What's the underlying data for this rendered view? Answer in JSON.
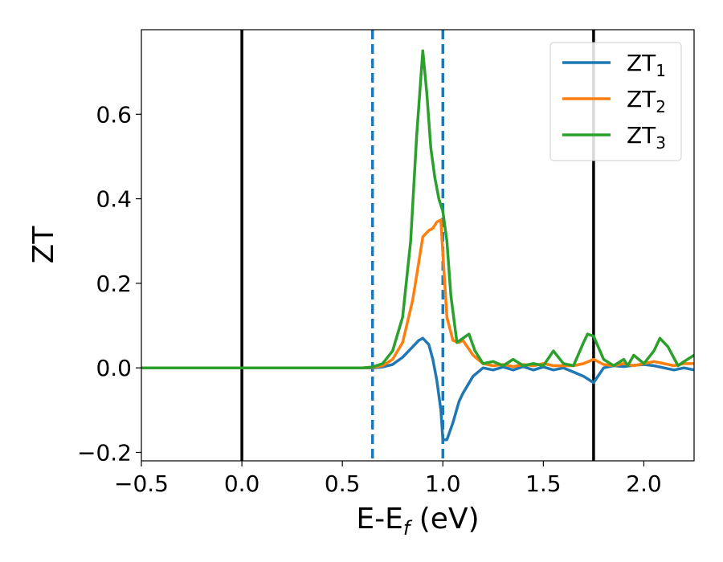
{
  "chart_data": {
    "type": "line",
    "xlabel": "E-E",
    "xlabel_sub": "f",
    "xlabel_suffix": " (eV)",
    "ylabel": "ZT",
    "xlim": [
      -0.5,
      2.25
    ],
    "ylim": [
      -0.22,
      0.8
    ],
    "xticks": [
      -0.5,
      0.0,
      0.5,
      1.0,
      1.5,
      2.0
    ],
    "xtick_labels": [
      "−0.5",
      "0.0",
      "0.5",
      "1.0",
      "1.5",
      "2.0"
    ],
    "yticks": [
      -0.2,
      0.0,
      0.2,
      0.4,
      0.6
    ],
    "ytick_labels": [
      "−0.2",
      "0.0",
      "0.2",
      "0.4",
      "0.6"
    ],
    "grid": false,
    "legend_placement": "top-right",
    "vlines": [
      {
        "x": 0.0,
        "style": "solid",
        "color": "#000000"
      },
      {
        "x": 1.75,
        "style": "solid",
        "color": "#000000"
      },
      {
        "x": 0.65,
        "style": "dashed",
        "color": "#1f77b4"
      },
      {
        "x": 1.0,
        "style": "dashed",
        "color": "#1f77b4"
      }
    ],
    "series": [
      {
        "name": "ZT",
        "name_sub": "1",
        "color": "#1f77b4",
        "x": [
          -0.5,
          0.6,
          0.65,
          0.7,
          0.75,
          0.8,
          0.85,
          0.88,
          0.9,
          0.93,
          0.95,
          0.97,
          0.99,
          1.0,
          1.02,
          1.05,
          1.08,
          1.1,
          1.15,
          1.2,
          1.25,
          1.3,
          1.35,
          1.4,
          1.45,
          1.5,
          1.55,
          1.6,
          1.65,
          1.7,
          1.75,
          1.8,
          1.85,
          1.9,
          1.95,
          2.0,
          2.05,
          2.1,
          2.15,
          2.2,
          2.25
        ],
        "y": [
          0.0,
          0.0,
          0.0,
          0.002,
          0.008,
          0.025,
          0.05,
          0.065,
          0.07,
          0.055,
          0.02,
          -0.03,
          -0.1,
          -0.17,
          -0.17,
          -0.13,
          -0.08,
          -0.06,
          -0.02,
          0.0,
          -0.005,
          0.002,
          -0.005,
          0.003,
          -0.005,
          0.002,
          -0.005,
          0.0,
          -0.01,
          -0.02,
          -0.035,
          0.0,
          0.005,
          0.003,
          0.006,
          0.008,
          0.005,
          0.0,
          -0.005,
          0.0,
          -0.005
        ]
      },
      {
        "name": "ZT",
        "name_sub": "2",
        "color": "#ff7f0e",
        "x": [
          -0.5,
          0.6,
          0.65,
          0.7,
          0.75,
          0.8,
          0.85,
          0.88,
          0.9,
          0.93,
          0.95,
          0.97,
          0.99,
          1.0,
          1.02,
          1.05,
          1.08,
          1.1,
          1.15,
          1.2,
          1.25,
          1.3,
          1.35,
          1.4,
          1.45,
          1.5,
          1.55,
          1.6,
          1.65,
          1.7,
          1.75,
          1.8,
          1.85,
          1.9,
          1.95,
          2.0,
          2.05,
          2.1,
          2.15,
          2.2,
          2.25
        ],
        "y": [
          0.0,
          0.0,
          0.001,
          0.005,
          0.02,
          0.06,
          0.16,
          0.25,
          0.31,
          0.325,
          0.33,
          0.345,
          0.35,
          0.27,
          0.12,
          0.065,
          0.06,
          0.065,
          0.03,
          0.01,
          0.005,
          0.008,
          0.003,
          0.008,
          0.005,
          0.01,
          0.005,
          0.005,
          0.005,
          0.01,
          0.02,
          0.008,
          0.005,
          0.01,
          0.005,
          0.01,
          0.015,
          0.01,
          0.005,
          0.01,
          0.01
        ]
      },
      {
        "name": "ZT",
        "name_sub": "3",
        "color": "#2ca02c",
        "x": [
          -0.5,
          0.6,
          0.65,
          0.7,
          0.75,
          0.8,
          0.84,
          0.87,
          0.9,
          0.92,
          0.94,
          0.96,
          0.98,
          1.0,
          1.02,
          1.04,
          1.07,
          1.1,
          1.13,
          1.16,
          1.2,
          1.25,
          1.3,
          1.35,
          1.4,
          1.45,
          1.5,
          1.55,
          1.6,
          1.65,
          1.7,
          1.72,
          1.75,
          1.8,
          1.85,
          1.9,
          1.92,
          1.95,
          2.0,
          2.05,
          2.08,
          2.12,
          2.17,
          2.2,
          2.25
        ],
        "y": [
          0.0,
          0.0,
          0.002,
          0.01,
          0.04,
          0.12,
          0.3,
          0.55,
          0.75,
          0.65,
          0.52,
          0.45,
          0.4,
          0.37,
          0.3,
          0.17,
          0.06,
          0.07,
          0.08,
          0.04,
          0.01,
          0.015,
          0.005,
          0.02,
          0.005,
          0.01,
          0.005,
          0.04,
          0.01,
          0.005,
          0.06,
          0.08,
          0.075,
          0.02,
          0.005,
          0.02,
          0.005,
          0.03,
          0.01,
          0.04,
          0.07,
          0.05,
          0.005,
          0.015,
          0.03
        ]
      }
    ]
  }
}
